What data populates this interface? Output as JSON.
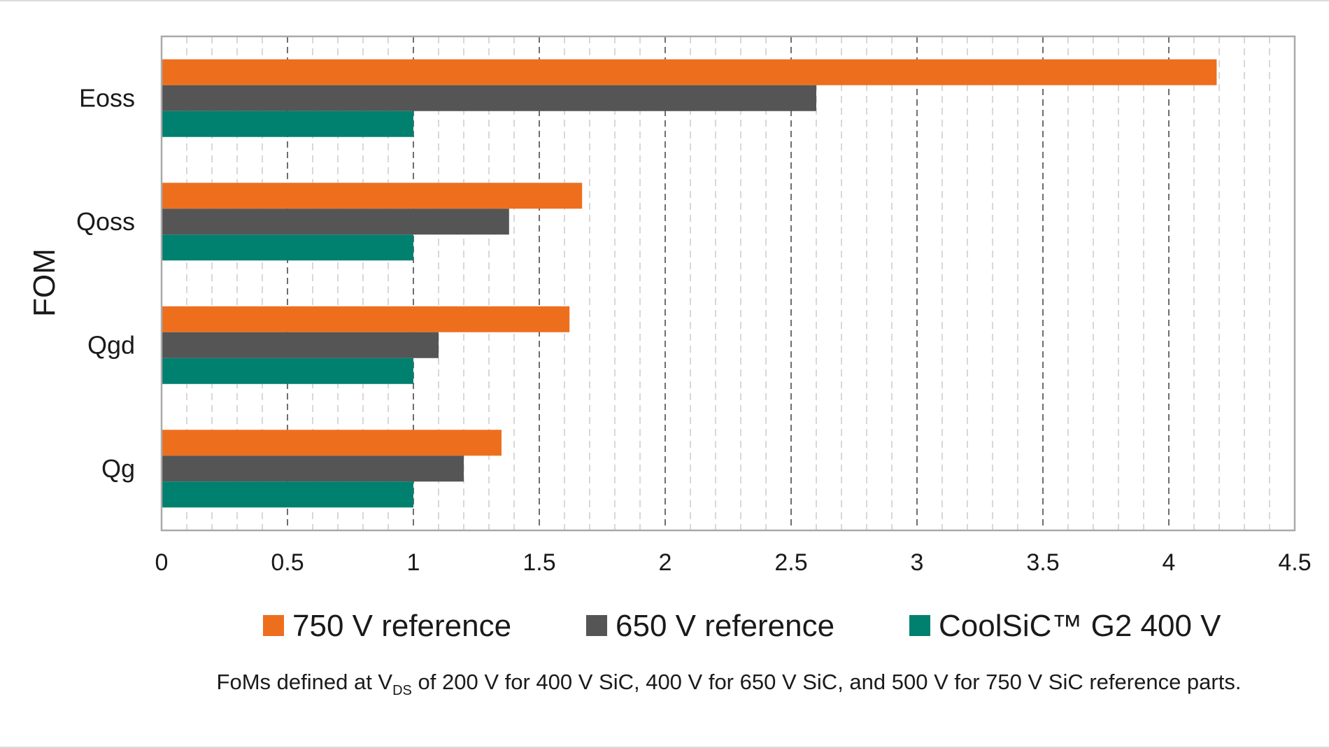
{
  "chart_data": {
    "type": "bar",
    "orientation": "horizontal",
    "title": "",
    "xlabel": "",
    "ylabel": "FOM",
    "xlim": [
      0,
      4.5
    ],
    "x_ticks": [
      0,
      0.5,
      1,
      1.5,
      2,
      2.5,
      3,
      3.5,
      4,
      4.5
    ],
    "x_tick_labels": [
      "0",
      "0.5",
      "1",
      "1.5",
      "2",
      "2.5",
      "3",
      "3.5",
      "4",
      "4.5"
    ],
    "minor_step": 0.1,
    "grid": true,
    "categories": [
      "Eoss",
      "Qoss",
      "Qgd",
      "Qg"
    ],
    "series": [
      {
        "name": "750 V reference",
        "color": "#ED6F1E",
        "values": [
          4.19,
          1.67,
          1.62,
          1.35
        ]
      },
      {
        "name": "650 V reference",
        "color": "#555555",
        "values": [
          2.6,
          1.38,
          1.1,
          1.2
        ]
      },
      {
        "name": "CoolSiC™ G2 400 V",
        "color": "#00806F",
        "values": [
          1.0,
          1.0,
          1.0,
          1.0
        ]
      }
    ],
    "legend_position": "bottom",
    "footnote": {
      "before": "FoMs defined at V",
      "subscript": "DS",
      "after": " of 200 V for 400 V SiC, 400 V for 650 V SiC, and 500 V for 750 V SiC reference parts."
    }
  }
}
